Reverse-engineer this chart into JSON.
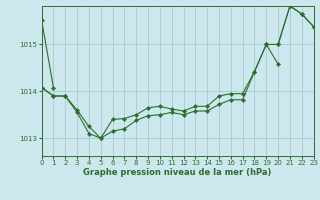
{
  "title": "Graphe pression niveau de la mer (hPa)",
  "background_color": "#cce8ee",
  "grid_color": "#aacccc",
  "line_color": "#2d6e2d",
  "marker_color": "#2d6e2d",
  "xlim": [
    0,
    23
  ],
  "ylim": [
    1012.62,
    1015.82
  ],
  "yticks": [
    1013,
    1014,
    1015
  ],
  "xticks": [
    0,
    1,
    2,
    3,
    4,
    5,
    6,
    7,
    8,
    9,
    10,
    11,
    12,
    13,
    14,
    15,
    16,
    17,
    18,
    19,
    20,
    21,
    22,
    23
  ],
  "series": [
    [
      1015.52,
      1014.08,
      null,
      null,
      null,
      null,
      null,
      null,
      null,
      null,
      null,
      null,
      null,
      null,
      null,
      null,
      null,
      null,
      null,
      null,
      1015.0,
      1015.82,
      1015.65,
      1015.38
    ],
    [
      1014.08,
      1013.9,
      1013.9,
      1013.55,
      1013.1,
      1013.0,
      1013.15,
      1013.2,
      1013.38,
      1013.48,
      1013.5,
      1013.55,
      1013.5,
      1013.58,
      1013.58,
      1013.72,
      1013.82,
      1013.82,
      1014.42,
      1015.0,
      1015.0,
      1015.82,
      1015.65,
      1015.38
    ],
    [
      1014.08,
      1013.9,
      1013.9,
      1013.6,
      1013.25,
      1013.0,
      1013.4,
      1013.42,
      1013.5,
      1013.65,
      1013.68,
      1013.62,
      1013.58,
      1013.68,
      1013.68,
      1013.9,
      1013.95,
      1013.95,
      1014.42,
      1015.0,
      1014.58,
      null,
      null,
      null
    ]
  ]
}
